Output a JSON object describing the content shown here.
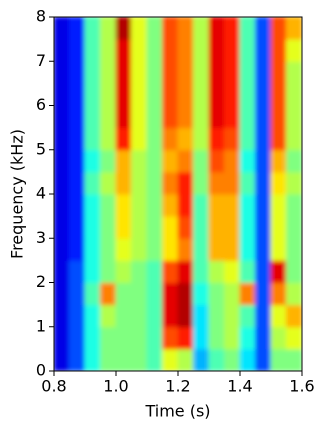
{
  "chart_data": {
    "type": "spectrogram",
    "xlabel": "Time (s)",
    "ylabel": "Frequency (kHz)",
    "xlim": [
      0.8,
      1.6
    ],
    "ylim": [
      0,
      8
    ],
    "xticks": [
      0.8,
      {
        "value": 1,
        "label": "1.0"
      },
      1.2,
      1.4,
      1.6
    ],
    "yticks": [
      0,
      1,
      2,
      3,
      4,
      5,
      6,
      7,
      8
    ],
    "colormap": "jet",
    "x": [
      0.825,
      0.875,
      0.925,
      0.975,
      1.025,
      1.075,
      1.125,
      1.175,
      1.225,
      1.275,
      1.325,
      1.375,
      1.425,
      1.475,
      1.525,
      1.575
    ],
    "y": [
      0.25,
      0.75,
      1.25,
      1.75,
      2.25,
      2.75,
      3.25,
      3.75,
      4.25,
      4.75,
      5.25,
      5.75,
      6.25,
      6.75,
      7.25,
      7.75
    ],
    "z": [
      [
        0.1,
        0.2,
        0.4,
        0.5,
        0.5,
        0.5,
        0.45,
        0.6,
        0.55,
        0.3,
        0.45,
        0.5,
        0.35,
        0.2,
        0.5,
        0.5
      ],
      [
        0.1,
        0.2,
        0.4,
        0.5,
        0.5,
        0.5,
        0.45,
        0.8,
        0.85,
        0.35,
        0.5,
        0.55,
        0.4,
        0.2,
        0.55,
        0.6
      ],
      [
        0.1,
        0.2,
        0.4,
        0.55,
        0.5,
        0.5,
        0.45,
        0.9,
        0.95,
        0.35,
        0.5,
        0.55,
        0.45,
        0.2,
        0.6,
        0.7
      ],
      [
        0.1,
        0.2,
        0.45,
        0.75,
        0.5,
        0.5,
        0.45,
        0.9,
        0.95,
        0.4,
        0.5,
        0.55,
        0.75,
        0.2,
        0.75,
        0.55
      ],
      [
        0.1,
        0.2,
        0.4,
        0.5,
        0.55,
        0.5,
        0.45,
        0.8,
        0.9,
        0.45,
        0.55,
        0.6,
        0.45,
        0.2,
        0.9,
        0.5
      ],
      [
        0.1,
        0.15,
        0.4,
        0.5,
        0.6,
        0.55,
        0.5,
        0.65,
        0.75,
        0.45,
        0.7,
        0.7,
        0.4,
        0.2,
        0.6,
        0.5
      ],
      [
        0.1,
        0.15,
        0.4,
        0.5,
        0.65,
        0.55,
        0.5,
        0.65,
        0.8,
        0.45,
        0.7,
        0.7,
        0.4,
        0.2,
        0.6,
        0.5
      ],
      [
        0.1,
        0.15,
        0.4,
        0.5,
        0.65,
        0.55,
        0.5,
        0.7,
        0.85,
        0.45,
        0.7,
        0.7,
        0.4,
        0.2,
        0.6,
        0.5
      ],
      [
        0.1,
        0.15,
        0.45,
        0.55,
        0.7,
        0.55,
        0.5,
        0.75,
        0.85,
        0.5,
        0.75,
        0.75,
        0.45,
        0.2,
        0.65,
        0.55
      ],
      [
        0.1,
        0.15,
        0.4,
        0.5,
        0.7,
        0.55,
        0.5,
        0.7,
        0.75,
        0.5,
        0.8,
        0.75,
        0.4,
        0.2,
        0.7,
        0.5
      ],
      [
        0.1,
        0.15,
        0.45,
        0.55,
        0.85,
        0.6,
        0.5,
        0.75,
        0.7,
        0.55,
        0.85,
        0.8,
        0.45,
        0.2,
        0.8,
        0.55
      ],
      [
        0.1,
        0.15,
        0.45,
        0.55,
        0.9,
        0.6,
        0.5,
        0.8,
        0.75,
        0.55,
        0.9,
        0.85,
        0.45,
        0.2,
        0.8,
        0.55
      ],
      [
        0.1,
        0.15,
        0.45,
        0.55,
        0.9,
        0.6,
        0.5,
        0.8,
        0.75,
        0.55,
        0.9,
        0.85,
        0.45,
        0.2,
        0.8,
        0.55
      ],
      [
        0.1,
        0.15,
        0.45,
        0.55,
        0.9,
        0.6,
        0.5,
        0.8,
        0.75,
        0.55,
        0.9,
        0.85,
        0.45,
        0.2,
        0.8,
        0.55
      ],
      [
        0.1,
        0.15,
        0.45,
        0.55,
        0.9,
        0.6,
        0.5,
        0.8,
        0.75,
        0.55,
        0.9,
        0.85,
        0.45,
        0.2,
        0.8,
        0.6
      ],
      [
        0.1,
        0.15,
        0.45,
        0.55,
        0.95,
        0.6,
        0.5,
        0.8,
        0.75,
        0.55,
        0.9,
        0.85,
        0.45,
        0.2,
        0.8,
        0.7
      ]
    ]
  }
}
